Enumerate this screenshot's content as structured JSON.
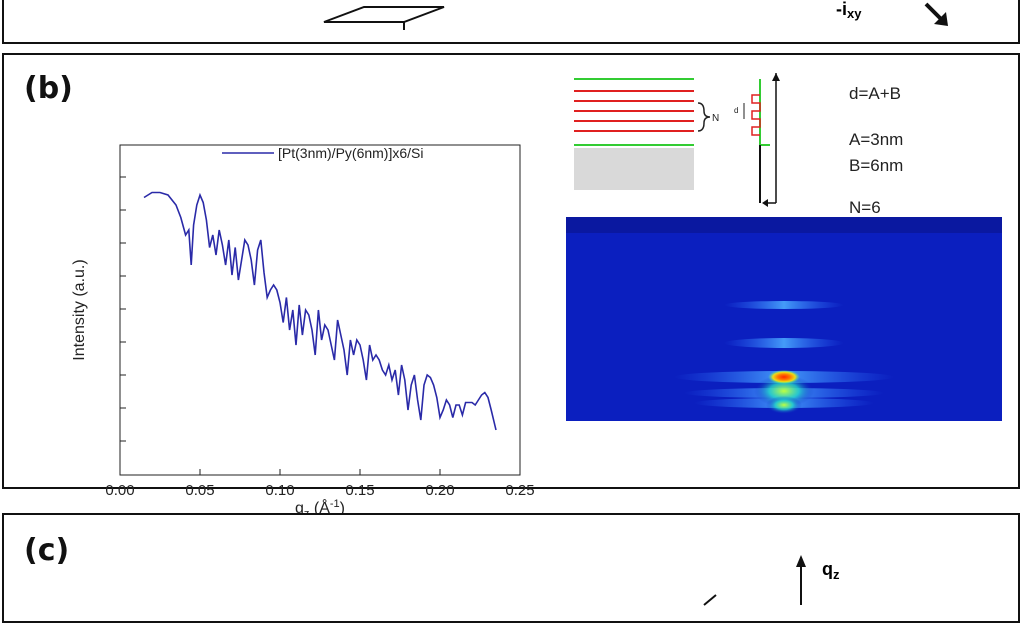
{
  "panel_a": {
    "label": "",
    "axis_label": "-i",
    "axis_sub": "xy"
  },
  "panel_b": {
    "label": "(b)",
    "schematic": {
      "brace_label": "N",
      "inset_label": "d",
      "annotations": [
        "d=A+B",
        "A=3nm",
        "B=6nm",
        "N=6"
      ]
    },
    "detector_image": {
      "description": "2D diffraction pattern (blue background with bright spots)",
      "colors": {
        "background": "#0b1fbf",
        "hot": "#ff2a00",
        "warm": "#ffe600",
        "mid": "#33ff99"
      }
    },
    "chart_data": {
      "type": "line",
      "xlabel": "q",
      "xlabel_sub": "z",
      "xlabel_unit": " (Å",
      "xlabel_unit_sup": "-1",
      "xlabel_close": ")",
      "ylabel": "Intensity (a.u.)",
      "xlim": [
        0.0,
        0.25
      ],
      "xticks": [
        "0.00",
        "0.05",
        "0.10",
        "0.15",
        "0.20",
        "0.25"
      ],
      "ylim": [
        0,
        1
      ],
      "yticks_labeled": false,
      "legend": "top",
      "series": [
        {
          "name": "[Pt(3nm)/Py(6nm)]x6/Si",
          "color": "#2a2aa8",
          "x": [
            0.015,
            0.02,
            0.025,
            0.03,
            0.035,
            0.038,
            0.041,
            0.043,
            0.0445,
            0.046,
            0.048,
            0.05,
            0.052,
            0.054,
            0.056,
            0.058,
            0.06,
            0.062,
            0.064,
            0.066,
            0.068,
            0.07,
            0.072,
            0.074,
            0.076,
            0.078,
            0.08,
            0.082,
            0.084,
            0.086,
            0.088,
            0.09,
            0.092,
            0.094,
            0.096,
            0.098,
            0.1,
            0.102,
            0.104,
            0.106,
            0.108,
            0.11,
            0.112,
            0.114,
            0.116,
            0.118,
            0.12,
            0.122,
            0.124,
            0.126,
            0.128,
            0.13,
            0.132,
            0.134,
            0.136,
            0.138,
            0.14,
            0.142,
            0.144,
            0.146,
            0.148,
            0.15,
            0.152,
            0.154,
            0.156,
            0.158,
            0.16,
            0.162,
            0.164,
            0.166,
            0.168,
            0.17,
            0.172,
            0.174,
            0.176,
            0.178,
            0.18,
            0.182,
            0.184,
            0.186,
            0.188,
            0.19,
            0.192,
            0.194,
            0.196,
            0.198,
            0.2,
            0.202,
            0.204,
            0.206,
            0.208,
            0.21,
            0.212,
            0.214,
            0.216,
            0.218,
            0.22,
            0.222,
            0.224,
            0.226,
            0.228,
            0.23,
            0.232,
            0.235
          ],
          "y": [
            0.95,
            0.97,
            0.97,
            0.96,
            0.92,
            0.87,
            0.8,
            0.82,
            0.68,
            0.84,
            0.92,
            0.96,
            0.93,
            0.86,
            0.75,
            0.8,
            0.72,
            0.82,
            0.76,
            0.68,
            0.78,
            0.64,
            0.75,
            0.62,
            0.7,
            0.78,
            0.76,
            0.7,
            0.6,
            0.74,
            0.78,
            0.65,
            0.55,
            0.58,
            0.6,
            0.58,
            0.53,
            0.45,
            0.55,
            0.42,
            0.5,
            0.36,
            0.52,
            0.4,
            0.5,
            0.48,
            0.42,
            0.32,
            0.5,
            0.38,
            0.44,
            0.42,
            0.36,
            0.3,
            0.46,
            0.4,
            0.34,
            0.24,
            0.38,
            0.32,
            0.38,
            0.36,
            0.3,
            0.22,
            0.36,
            0.3,
            0.32,
            0.3,
            0.26,
            0.24,
            0.28,
            0.22,
            0.26,
            0.16,
            0.28,
            0.22,
            0.1,
            0.2,
            0.24,
            0.14,
            0.06,
            0.2,
            0.24,
            0.23,
            0.2,
            0.15,
            0.07,
            0.1,
            0.14,
            0.12,
            0.07,
            0.12,
            0.12,
            0.08,
            0.13,
            0.13,
            0.13,
            0.12,
            0.14,
            0.16,
            0.17,
            0.15,
            0.1,
            0.02
          ]
        }
      ]
    }
  },
  "panel_c": {
    "label": "(c)",
    "axis_label": "q",
    "axis_sub": "z"
  }
}
